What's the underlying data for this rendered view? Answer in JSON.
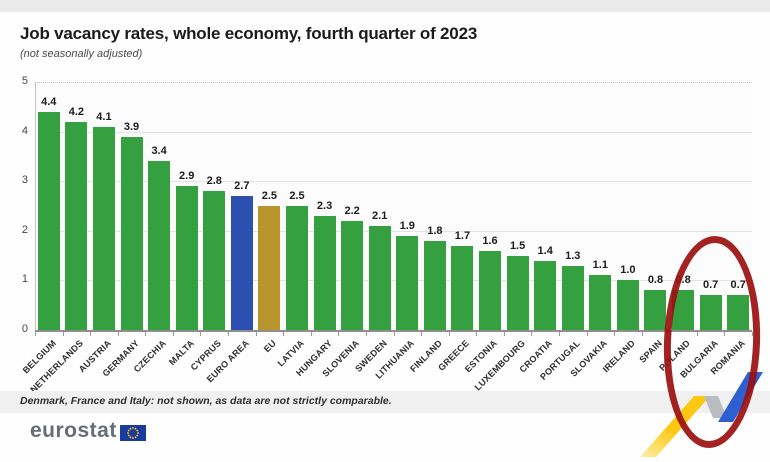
{
  "page": {
    "title": "Job vacancy rates, whole economy, fourth quarter of 2023",
    "subtitle": "(not seasonally adjusted)",
    "footnote": "Denmark, France and Italy: not shown, as data are not strictly comparable.",
    "logo_text": "eurostat"
  },
  "colors": {
    "bar_green": "#35a03f",
    "bar_blue": "#2b50af",
    "bar_gold": "#b9962d",
    "annotation_red": "#9a100e",
    "ribbon_yellow": "#fcc812",
    "ribbon_gray": "#b9bdc1",
    "ribbon_blue": "#2d5ed2",
    "logo_navy": "#1a3a9e",
    "star_yellow": "#ffd617"
  },
  "chart_data": {
    "type": "bar",
    "title": "Job vacancy rates, whole economy, fourth quarter of 2023",
    "subtitle": "(not seasonally adjusted)",
    "categories": [
      "BELGIUM",
      "NETHERLANDS",
      "AUSTRIA",
      "GERMANY",
      "CZECHIA",
      "MALTA",
      "CYPRUS",
      "EURO AREA",
      "EU",
      "LATVIA",
      "HUNGARY",
      "SLOVENIA",
      "SWEDEN",
      "LITHUANIA",
      "FINLAND",
      "GREECE",
      "ESTONIA",
      "LUXEMBOURG",
      "CROATIA",
      "PORTUGAL",
      "SLOVAKIA",
      "IRELAND",
      "SPAIN",
      "POLAND",
      "BULGARIA",
      "ROMANIA"
    ],
    "values": [
      4.4,
      4.2,
      4.1,
      3.9,
      3.4,
      2.9,
      2.8,
      2.7,
      2.5,
      2.5,
      2.3,
      2.2,
      2.1,
      1.9,
      1.8,
      1.7,
      1.6,
      1.5,
      1.4,
      1.3,
      1.1,
      1.0,
      0.8,
      0.8,
      0.7,
      0.7
    ],
    "bar_color_keys": {
      "EURO AREA": "bar_blue",
      "EU": "bar_gold"
    },
    "xlabel": "",
    "ylabel": "",
    "ylim": [
      0,
      5
    ],
    "yticks": [
      0,
      1,
      2,
      3,
      4,
      5
    ],
    "grid": true,
    "legend": "none",
    "value_labels": "above bars, one decimal"
  },
  "annotation": {
    "type": "hand-drawn red ellipse",
    "around": "BULGARIA and ROMANIA bars (lowest rates, 0.7)"
  }
}
